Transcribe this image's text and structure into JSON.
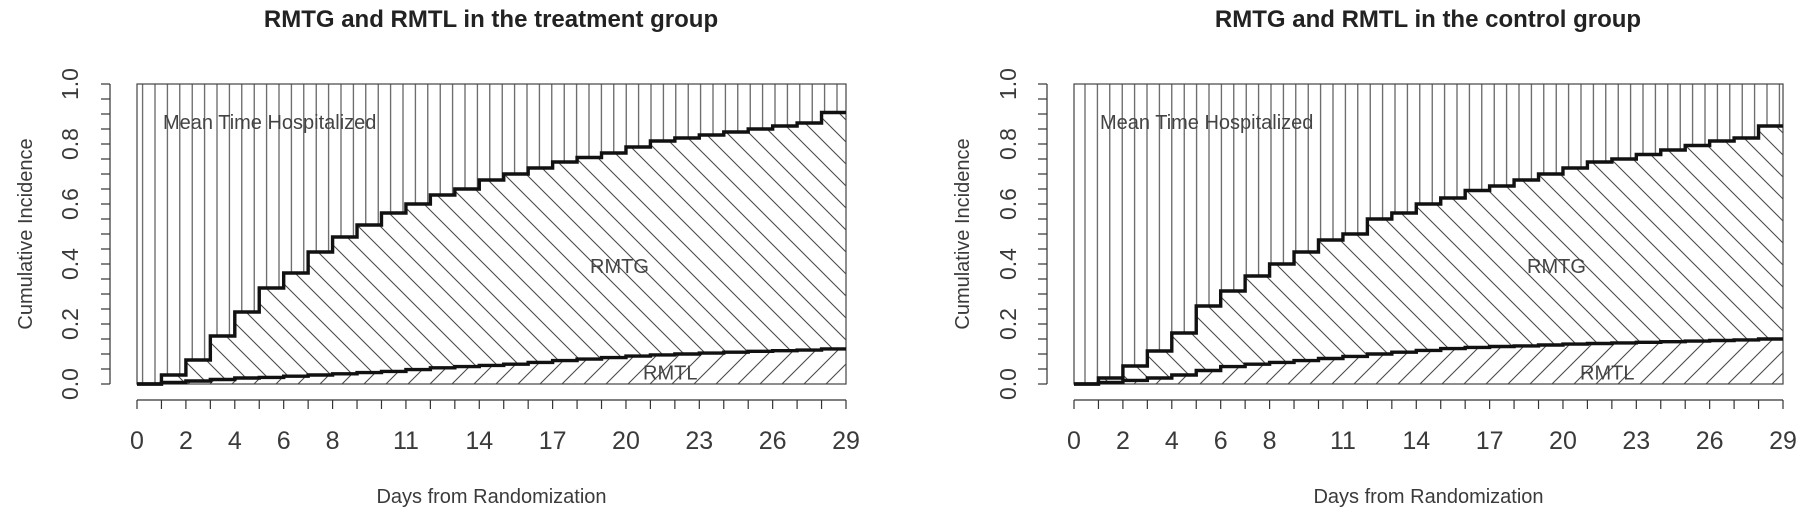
{
  "chart_data": [
    {
      "type": "area",
      "title": "RMTG and RMTL in the treatment group",
      "xlabel": "Days from Randomization",
      "ylabel": "Cumulative Incidence",
      "xlim": [
        0,
        29
      ],
      "ylim": [
        0,
        1
      ],
      "x_ticks": [
        0,
        2,
        4,
        6,
        8,
        11,
        14,
        17,
        20,
        23,
        26,
        29
      ],
      "y_ticks": [
        0.0,
        0.2,
        0.4,
        0.6,
        0.8,
        1.0
      ],
      "y_tick_labels": [
        "0.0",
        "0.2",
        "0.4",
        "0.6",
        "0.8",
        "1.0"
      ],
      "grid": false,
      "annotations": {
        "top": "Mean Time Hospitalized",
        "middle": "RMTG",
        "bottom": "RMTL"
      },
      "series": [
        {
          "x": [
            0,
            1,
            2,
            3,
            4,
            5,
            6,
            7,
            8,
            9,
            10,
            11,
            12,
            13,
            14,
            15,
            16,
            17,
            18,
            19,
            20,
            21,
            22,
            23,
            24,
            25,
            26,
            27,
            28,
            29
          ],
          "values": [
            0.0,
            0.03,
            0.08,
            0.16,
            0.24,
            0.32,
            0.37,
            0.44,
            0.49,
            0.53,
            0.57,
            0.6,
            0.63,
            0.65,
            0.68,
            0.7,
            0.72,
            0.74,
            0.755,
            0.77,
            0.79,
            0.81,
            0.82,
            0.83,
            0.84,
            0.85,
            0.86,
            0.87,
            0.905,
            0.905
          ]
        },
        {
          "x": [
            0,
            1,
            2,
            3,
            4,
            5,
            6,
            7,
            8,
            9,
            10,
            11,
            12,
            13,
            14,
            15,
            16,
            17,
            18,
            19,
            20,
            21,
            22,
            23,
            24,
            25,
            26,
            27,
            28,
            29
          ],
          "values": [
            0.0,
            0.005,
            0.01,
            0.015,
            0.02,
            0.022,
            0.026,
            0.03,
            0.034,
            0.038,
            0.042,
            0.048,
            0.054,
            0.058,
            0.062,
            0.066,
            0.072,
            0.078,
            0.083,
            0.088,
            0.093,
            0.097,
            0.1,
            0.103,
            0.106,
            0.109,
            0.111,
            0.113,
            0.117,
            0.117
          ]
        }
      ]
    },
    {
      "type": "area",
      "title": "RMTG and RMTL in the control group",
      "xlabel": "Days from Randomization",
      "ylabel": "Cumulative Incidence",
      "xlim": [
        0,
        29
      ],
      "ylim": [
        0,
        1
      ],
      "x_ticks": [
        0,
        2,
        4,
        6,
        8,
        11,
        14,
        17,
        20,
        23,
        26,
        29
      ],
      "y_ticks": [
        0.0,
        0.2,
        0.4,
        0.6,
        0.8,
        1.0
      ],
      "y_tick_labels": [
        "0.0",
        "0.2",
        "0.4",
        "0.6",
        "0.8",
        "1.0"
      ],
      "grid": false,
      "annotations": {
        "top": "Mean Time Hospitalized",
        "middle": "RMTG",
        "bottom": "RMTL"
      },
      "series": [
        {
          "x": [
            0,
            1,
            2,
            3,
            4,
            5,
            6,
            7,
            8,
            9,
            10,
            11,
            12,
            13,
            14,
            15,
            16,
            17,
            18,
            19,
            20,
            21,
            22,
            23,
            24,
            25,
            26,
            27,
            28,
            29
          ],
          "values": [
            0.0,
            0.02,
            0.06,
            0.11,
            0.17,
            0.26,
            0.31,
            0.36,
            0.4,
            0.44,
            0.48,
            0.5,
            0.55,
            0.57,
            0.6,
            0.62,
            0.645,
            0.66,
            0.68,
            0.7,
            0.72,
            0.74,
            0.75,
            0.765,
            0.78,
            0.795,
            0.81,
            0.82,
            0.86,
            0.86
          ]
        },
        {
          "x": [
            0,
            1,
            2,
            3,
            4,
            5,
            6,
            7,
            8,
            9,
            10,
            11,
            12,
            13,
            14,
            15,
            16,
            17,
            18,
            19,
            20,
            21,
            22,
            23,
            24,
            25,
            26,
            27,
            28,
            29
          ],
          "values": [
            0.0,
            0.005,
            0.012,
            0.02,
            0.03,
            0.045,
            0.058,
            0.066,
            0.072,
            0.078,
            0.085,
            0.092,
            0.1,
            0.106,
            0.112,
            0.118,
            0.122,
            0.125,
            0.127,
            0.13,
            0.133,
            0.135,
            0.137,
            0.139,
            0.141,
            0.143,
            0.145,
            0.147,
            0.15,
            0.15
          ]
        }
      ]
    }
  ]
}
